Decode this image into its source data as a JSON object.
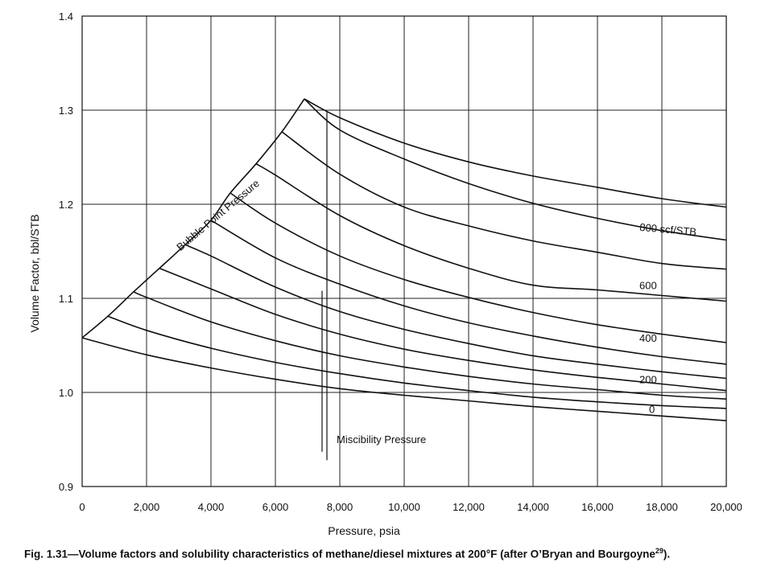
{
  "chart_data": {
    "type": "line",
    "title": "",
    "xlabel": "Pressure, psia",
    "ylabel": "Volume Factor, bbl/STB",
    "xlim": [
      0,
      20000
    ],
    "ylim": [
      0.9,
      1.4
    ],
    "x_ticks": [
      0,
      2000,
      4000,
      6000,
      8000,
      10000,
      12000,
      14000,
      16000,
      18000,
      20000
    ],
    "x_tick_labels": [
      "0",
      "2,000",
      "4,000",
      "6,000",
      "8,000",
      "10,000",
      "12,000",
      "14,000",
      "16,000",
      "18,000",
      "20,000"
    ],
    "y_ticks": [
      0.9,
      1.0,
      1.1,
      1.2,
      1.3,
      1.4
    ],
    "y_tick_labels": [
      "0.9",
      "1.0",
      "1.1",
      "1.2",
      "1.3",
      "1.4"
    ],
    "grid": true,
    "bubble_point": {
      "label": "Bubble Point Pressure",
      "x": [
        0,
        800,
        1600,
        2400,
        3200,
        4000,
        4600,
        5400,
        6200,
        6900
      ],
      "y": [
        1.058,
        1.081,
        1.107,
        1.132,
        1.157,
        1.183,
        1.212,
        1.243,
        1.277,
        1.312
      ]
    },
    "series": [
      {
        "bubble_x": 0,
        "x": [
          0,
          2000,
          4000,
          6000,
          8000,
          10000,
          12000,
          14000,
          16000,
          18000,
          20000
        ],
        "y": [
          1.058,
          1.04,
          1.026,
          1.014,
          1.004,
          0.997,
          0.991,
          0.985,
          0.98,
          0.975,
          0.97
        ]
      },
      {
        "bubble_x": 800,
        "x": [
          800,
          2000,
          4000,
          6000,
          8000,
          10000,
          12000,
          14000,
          16000,
          18000,
          20000
        ],
        "y": [
          1.081,
          1.066,
          1.047,
          1.032,
          1.02,
          1.01,
          1.002,
          0.995,
          0.99,
          0.986,
          0.983
        ]
      },
      {
        "bubble_x": 1600,
        "x": [
          1600,
          2000,
          4000,
          6000,
          8000,
          10000,
          12000,
          14000,
          16000,
          18000,
          20000
        ],
        "y": [
          1.107,
          1.101,
          1.075,
          1.055,
          1.039,
          1.027,
          1.017,
          1.009,
          1.003,
          0.997,
          0.993
        ]
      },
      {
        "bubble_x": 2400,
        "x": [
          2400,
          4000,
          6000,
          8000,
          10000,
          12000,
          14000,
          16000,
          18000,
          20000
        ],
        "y": [
          1.132,
          1.11,
          1.083,
          1.062,
          1.046,
          1.034,
          1.024,
          1.016,
          1.009,
          1.002
        ]
      },
      {
        "bubble_x": 3200,
        "x": [
          3200,
          4000,
          6000,
          8000,
          10000,
          12000,
          14000,
          16000,
          18000,
          20000
        ],
        "y": [
          1.157,
          1.145,
          1.112,
          1.086,
          1.067,
          1.052,
          1.039,
          1.03,
          1.022,
          1.015
        ]
      },
      {
        "bubble_x": 4000,
        "x": [
          4000,
          6000,
          8000,
          10000,
          12000,
          14000,
          16000,
          18000,
          20000
        ],
        "y": [
          1.183,
          1.143,
          1.115,
          1.092,
          1.074,
          1.06,
          1.048,
          1.038,
          1.03
        ]
      },
      {
        "bubble_x": 4600,
        "x": [
          4600,
          6000,
          8000,
          10000,
          12000,
          14000,
          16000,
          18000,
          20000
        ],
        "y": [
          1.212,
          1.18,
          1.145,
          1.12,
          1.101,
          1.085,
          1.072,
          1.062,
          1.053
        ]
      },
      {
        "bubble_x": 5400,
        "x": [
          5400,
          6000,
          8000,
          10000,
          12000,
          14000,
          16000,
          18000,
          20000
        ],
        "y": [
          1.243,
          1.231,
          1.188,
          1.156,
          1.132,
          1.114,
          1.109,
          1.103,
          1.097
        ]
      },
      {
        "bubble_x": 6200,
        "x": [
          6200,
          8000,
          10000,
          12000,
          14000,
          16000,
          18000,
          20000
        ],
        "y": [
          1.277,
          1.232,
          1.197,
          1.177,
          1.161,
          1.149,
          1.137,
          1.131
        ]
      },
      {
        "bubble_x": 6900,
        "x": [
          6900,
          8000,
          10000,
          12000,
          14000,
          16000,
          18000,
          20000
        ],
        "y": [
          1.312,
          1.279,
          1.248,
          1.222,
          1.201,
          1.185,
          1.172,
          1.162
        ]
      },
      {
        "bubble_x": 6900,
        "x": [
          6900,
          8000,
          10000,
          12000,
          14000,
          16000,
          18000,
          20000
        ],
        "y": [
          1.312,
          1.292,
          1.265,
          1.245,
          1.23,
          1.218,
          1.206,
          1.197
        ]
      }
    ],
    "curve_labels": [
      {
        "text": "800  scf/STB",
        "x": 17300,
        "y": 1.172
      },
      {
        "text": "600",
        "x": 17300,
        "y": 1.11
      },
      {
        "text": "400",
        "x": 17300,
        "y": 1.054
      },
      {
        "text": "200",
        "x": 17300,
        "y": 1.01
      },
      {
        "text": "0",
        "x": 17600,
        "y": 0.978
      }
    ],
    "miscibility": {
      "label": "Miscibility Pressure",
      "lines": [
        {
          "x": 7600,
          "y_top": 1.298,
          "y_bottom": 0.928
        },
        {
          "x": 7450,
          "y_top": 1.108,
          "y_bottom": 0.937
        }
      ]
    }
  },
  "caption": {
    "text": "Fig. 1.31—Volume factors and solubility characteristics of methane/diesel mixtures at 200°F (after O’Bryan and Bourgoyne",
    "ref": "29",
    "end": ")."
  }
}
